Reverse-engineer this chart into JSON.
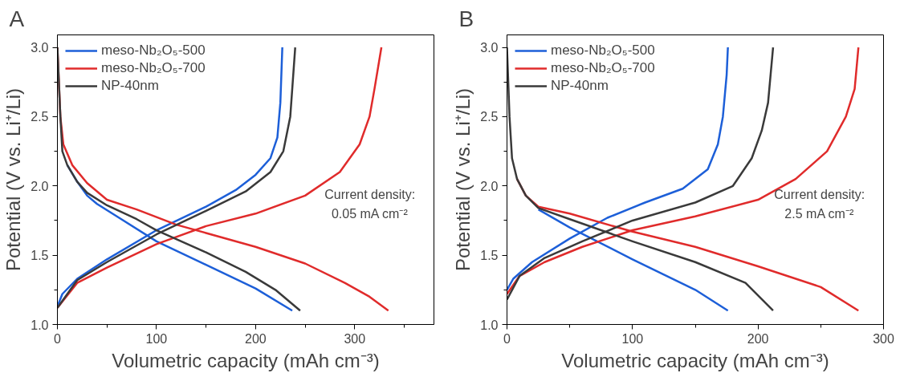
{
  "chart_data": [
    {
      "type": "line",
      "title": "A",
      "xlabel": "Volumetric capacity (mAh cm⁻³)",
      "ylabel": "Potential (V vs. Li⁺/Li)",
      "xlim": [
        0,
        380
      ],
      "ylim": [
        1.0,
        3.09
      ],
      "xticks": [
        0,
        {
          "value": 50,
          "label": null
        },
        100,
        {
          "value": 150,
          "label": null
        },
        200,
        {
          "value": 250,
          "label": null
        },
        300,
        {
          "value": 350,
          "label": null
        }
      ],
      "yticks": [
        {
          "value": 1,
          "label": "1.0"
        },
        {
          "value": 1.25,
          "label": null
        },
        {
          "value": 1.5,
          "label": "1.5"
        },
        {
          "value": 1.75,
          "label": null
        },
        {
          "value": 2,
          "label": "2.0"
        },
        {
          "value": 2.25,
          "label": null
        },
        {
          "value": 2.5,
          "label": "2.5"
        },
        {
          "value": 2.75,
          "label": null
        },
        {
          "value": 3,
          "label": "3.0"
        }
      ],
      "grid": false,
      "legend": "top left",
      "line_style": "solid",
      "marker": "none",
      "annotations": [
        "Current density:\n0.05 mA cm⁻²"
      ],
      "series": [
        {
          "name": "meso-Nb₂O₅-500",
          "color": "#1d5fd8",
          "x": [
            10,
            20,
            30,
            40,
            60,
            100,
            150,
            200,
            237
          ],
          "values": [
            2.15,
            2.03,
            1.93,
            1.87,
            1.78,
            1.6,
            1.43,
            1.26,
            1.1
          ]
        },
        {
          "color": "#1d5fd8",
          "x": [
            0,
            5,
            20,
            50,
            100,
            150,
            180,
            200,
            215,
            222,
            225,
            227
          ],
          "values": [
            1.13,
            1.22,
            1.33,
            1.47,
            1.68,
            1.85,
            1.97,
            2.08,
            2.2,
            2.35,
            2.6,
            3.0
          ]
        },
        {
          "name": "meso-Nb₂O₅-700",
          "color": "#e02b2b",
          "x": [
            0,
            3,
            6,
            15,
            30,
            50,
            80,
            120,
            150,
            200,
            250,
            290,
            315,
            334
          ],
          "values": [
            3.0,
            2.5,
            2.3,
            2.15,
            2.02,
            1.9,
            1.83,
            1.72,
            1.66,
            1.56,
            1.44,
            1.3,
            1.2,
            1.1
          ]
        },
        {
          "color": "#e02b2b",
          "x": [
            0,
            20,
            50,
            100,
            150,
            200,
            250,
            285,
            305,
            315,
            320,
            327
          ],
          "values": [
            1.12,
            1.3,
            1.41,
            1.58,
            1.71,
            1.8,
            1.93,
            2.1,
            2.3,
            2.5,
            2.7,
            3.0
          ]
        },
        {
          "name": "NP-40nm",
          "color": "#3a3a3a",
          "x": [
            0,
            3,
            5,
            10,
            20,
            30,
            50,
            80,
            100,
            150,
            190,
            220,
            245
          ],
          "values": [
            3.0,
            2.5,
            2.25,
            2.15,
            2.03,
            1.95,
            1.86,
            1.76,
            1.68,
            1.52,
            1.38,
            1.25,
            1.1
          ]
        },
        {
          "color": "#3a3a3a",
          "x": [
            0,
            20,
            50,
            100,
            150,
            190,
            215,
            228,
            235,
            238,
            240
          ],
          "values": [
            1.12,
            1.32,
            1.45,
            1.65,
            1.82,
            1.96,
            2.1,
            2.25,
            2.5,
            2.8,
            3.0
          ]
        }
      ]
    },
    {
      "type": "line",
      "title": "B",
      "xlabel": "Volumetric capacity (mAh cm⁻³)",
      "ylabel": "Potential (V vs. Li⁺/Li)",
      "xlim": [
        0,
        300
      ],
      "ylim": [
        1.0,
        3.09
      ],
      "xticks": [
        0,
        {
          "value": 50,
          "label": null
        },
        100,
        {
          "value": 150,
          "label": null
        },
        200,
        {
          "value": 250,
          "label": null
        },
        300
      ],
      "yticks": [
        {
          "value": 1,
          "label": "1.0"
        },
        {
          "value": 1.25,
          "label": null
        },
        {
          "value": 1.5,
          "label": "1.5"
        },
        {
          "value": 1.75,
          "label": null
        },
        {
          "value": 2,
          "label": "2.0"
        },
        {
          "value": 2.25,
          "label": null
        },
        {
          "value": 2.5,
          "label": "2.5"
        },
        {
          "value": 2.75,
          "label": null
        },
        {
          "value": 3,
          "label": "3.0"
        }
      ],
      "grid": false,
      "legend": "top left",
      "line_style": "solid",
      "marker": "none",
      "annotations": [
        "Current density:\n2.5 mA cm⁻²"
      ],
      "series": [
        {
          "name": "meso-Nb₂O₅-500",
          "color": "#1d5fd8",
          "x": [
            25,
            50,
            100,
            150,
            176
          ],
          "values": [
            1.83,
            1.7,
            1.47,
            1.25,
            1.1
          ]
        },
        {
          "color": "#1d5fd8",
          "x": [
            0,
            5,
            20,
            50,
            80,
            110,
            140,
            160,
            168,
            172,
            175,
            176
          ],
          "values": [
            1.25,
            1.33,
            1.45,
            1.62,
            1.77,
            1.88,
            1.98,
            2.12,
            2.3,
            2.5,
            2.8,
            3.0
          ]
        },
        {
          "name": "meso-Nb₂O₅-700",
          "color": "#e02b2b",
          "x": [
            8,
            15,
            25,
            50,
            100,
            150,
            200,
            250,
            280
          ],
          "values": [
            2.05,
            1.93,
            1.85,
            1.8,
            1.67,
            1.56,
            1.42,
            1.27,
            1.1
          ]
        },
        {
          "color": "#e02b2b",
          "x": [
            0,
            10,
            30,
            60,
            100,
            150,
            200,
            230,
            255,
            270,
            277,
            280
          ],
          "values": [
            1.22,
            1.35,
            1.45,
            1.56,
            1.68,
            1.78,
            1.9,
            2.05,
            2.25,
            2.5,
            2.7,
            3.0
          ]
        },
        {
          "name": "NP-40nm",
          "color": "#3a3a3a",
          "x": [
            0,
            2,
            4,
            8,
            15,
            25,
            50,
            100,
            150,
            190,
            212
          ],
          "values": [
            3.0,
            2.5,
            2.2,
            2.05,
            1.93,
            1.84,
            1.76,
            1.6,
            1.45,
            1.3,
            1.1
          ]
        },
        {
          "color": "#3a3a3a",
          "x": [
            0,
            10,
            30,
            60,
            100,
            150,
            180,
            195,
            203,
            208,
            212
          ],
          "values": [
            1.18,
            1.35,
            1.48,
            1.6,
            1.75,
            1.88,
            2.0,
            2.2,
            2.4,
            2.6,
            3.0
          ]
        }
      ]
    }
  ]
}
